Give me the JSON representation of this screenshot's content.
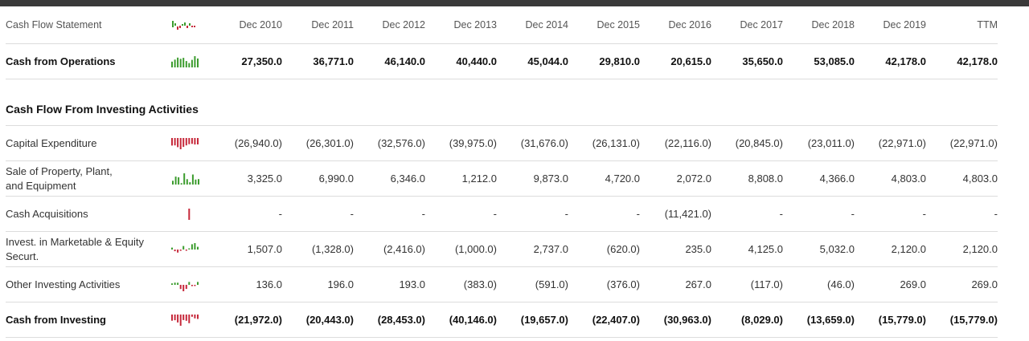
{
  "header": {
    "title": "Cash Flow Statement",
    "periods": [
      "Dec 2010",
      "Dec 2011",
      "Dec 2012",
      "Dec 2013",
      "Dec 2014",
      "Dec 2015",
      "Dec 2016",
      "Dec 2017",
      "Dec 2018",
      "Dec 2019",
      "TTM"
    ]
  },
  "colors": {
    "positive_bar": "#3c9c2e",
    "negative_bar": "#c6283a",
    "header_strip": "#3a3a3a",
    "divider": "#dcdcdc"
  },
  "operations": {
    "label": "Cash from Operations",
    "values": [
      "27,350.0",
      "36,771.0",
      "46,140.0",
      "40,440.0",
      "45,044.0",
      "29,810.0",
      "20,615.0",
      "35,650.0",
      "53,085.0",
      "42,178.0",
      "42,178.0"
    ],
    "numeric": [
      27350,
      36771,
      46140,
      40440,
      45044,
      29810,
      20615,
      35650,
      53085,
      42178
    ]
  },
  "investing_section": {
    "title": "Cash Flow From Investing Activities"
  },
  "investing_rows": [
    {
      "label": "Capital Expenditure",
      "values": [
        "(26,940.0)",
        "(26,301.0)",
        "(32,576.0)",
        "(39,975.0)",
        "(31,676.0)",
        "(26,131.0)",
        "(22,116.0)",
        "(20,845.0)",
        "(23,011.0)",
        "(22,971.0)",
        "(22,971.0)"
      ],
      "numeric": [
        -26940,
        -26301,
        -32576,
        -39975,
        -31676,
        -26131,
        -22116,
        -20845,
        -23011,
        -22971
      ]
    },
    {
      "label": "Sale of Property, Plant, and Equipment",
      "values": [
        "3,325.0",
        "6,990.0",
        "6,346.0",
        "1,212.0",
        "9,873.0",
        "4,720.0",
        "2,072.0",
        "8,808.0",
        "4,366.0",
        "4,803.0",
        "4,803.0"
      ],
      "numeric": [
        3325,
        6990,
        6346,
        1212,
        9873,
        4720,
        2072,
        8808,
        4366,
        4803
      ]
    },
    {
      "label": "Cash Acquisitions",
      "values": [
        "-",
        "-",
        "-",
        "-",
        "-",
        "-",
        "(11,421.0)",
        "-",
        "-",
        "-",
        "-"
      ],
      "numeric": [
        0,
        0,
        0,
        0,
        0,
        0,
        -11421,
        0,
        0,
        0
      ]
    },
    {
      "label": "Invest. in Marketable & Equity Securt.",
      "values": [
        "1,507.0",
        "(1,328.0)",
        "(2,416.0)",
        "(1,000.0)",
        "2,737.0",
        "(620.0)",
        "235.0",
        "4,125.0",
        "5,032.0",
        "2,120.0",
        "2,120.0"
      ],
      "numeric": [
        1507,
        -1328,
        -2416,
        -1000,
        2737,
        -620,
        235,
        4125,
        5032,
        2120
      ]
    },
    {
      "label": "Other Investing Activities",
      "values": [
        "136.0",
        "196.0",
        "193.0",
        "(383.0)",
        "(591.0)",
        "(376.0)",
        "267.0",
        "(117.0)",
        "(46.0)",
        "269.0",
        "269.0"
      ],
      "numeric": [
        136,
        196,
        193,
        -383,
        -591,
        -376,
        267,
        -117,
        -46,
        269
      ]
    }
  ],
  "investing_total": {
    "label": "Cash from Investing",
    "values": [
      "(21,972.0)",
      "(20,443.0)",
      "(28,453.0)",
      "(40,146.0)",
      "(19,657.0)",
      "(22,407.0)",
      "(30,963.0)",
      "(8,029.0)",
      "(13,659.0)",
      "(15,779.0)",
      "(15,779.0)"
    ],
    "numeric": [
      -21972,
      -20443,
      -28453,
      -40146,
      -19657,
      -22407,
      -30963,
      -8029,
      -13659,
      -15779
    ]
  }
}
